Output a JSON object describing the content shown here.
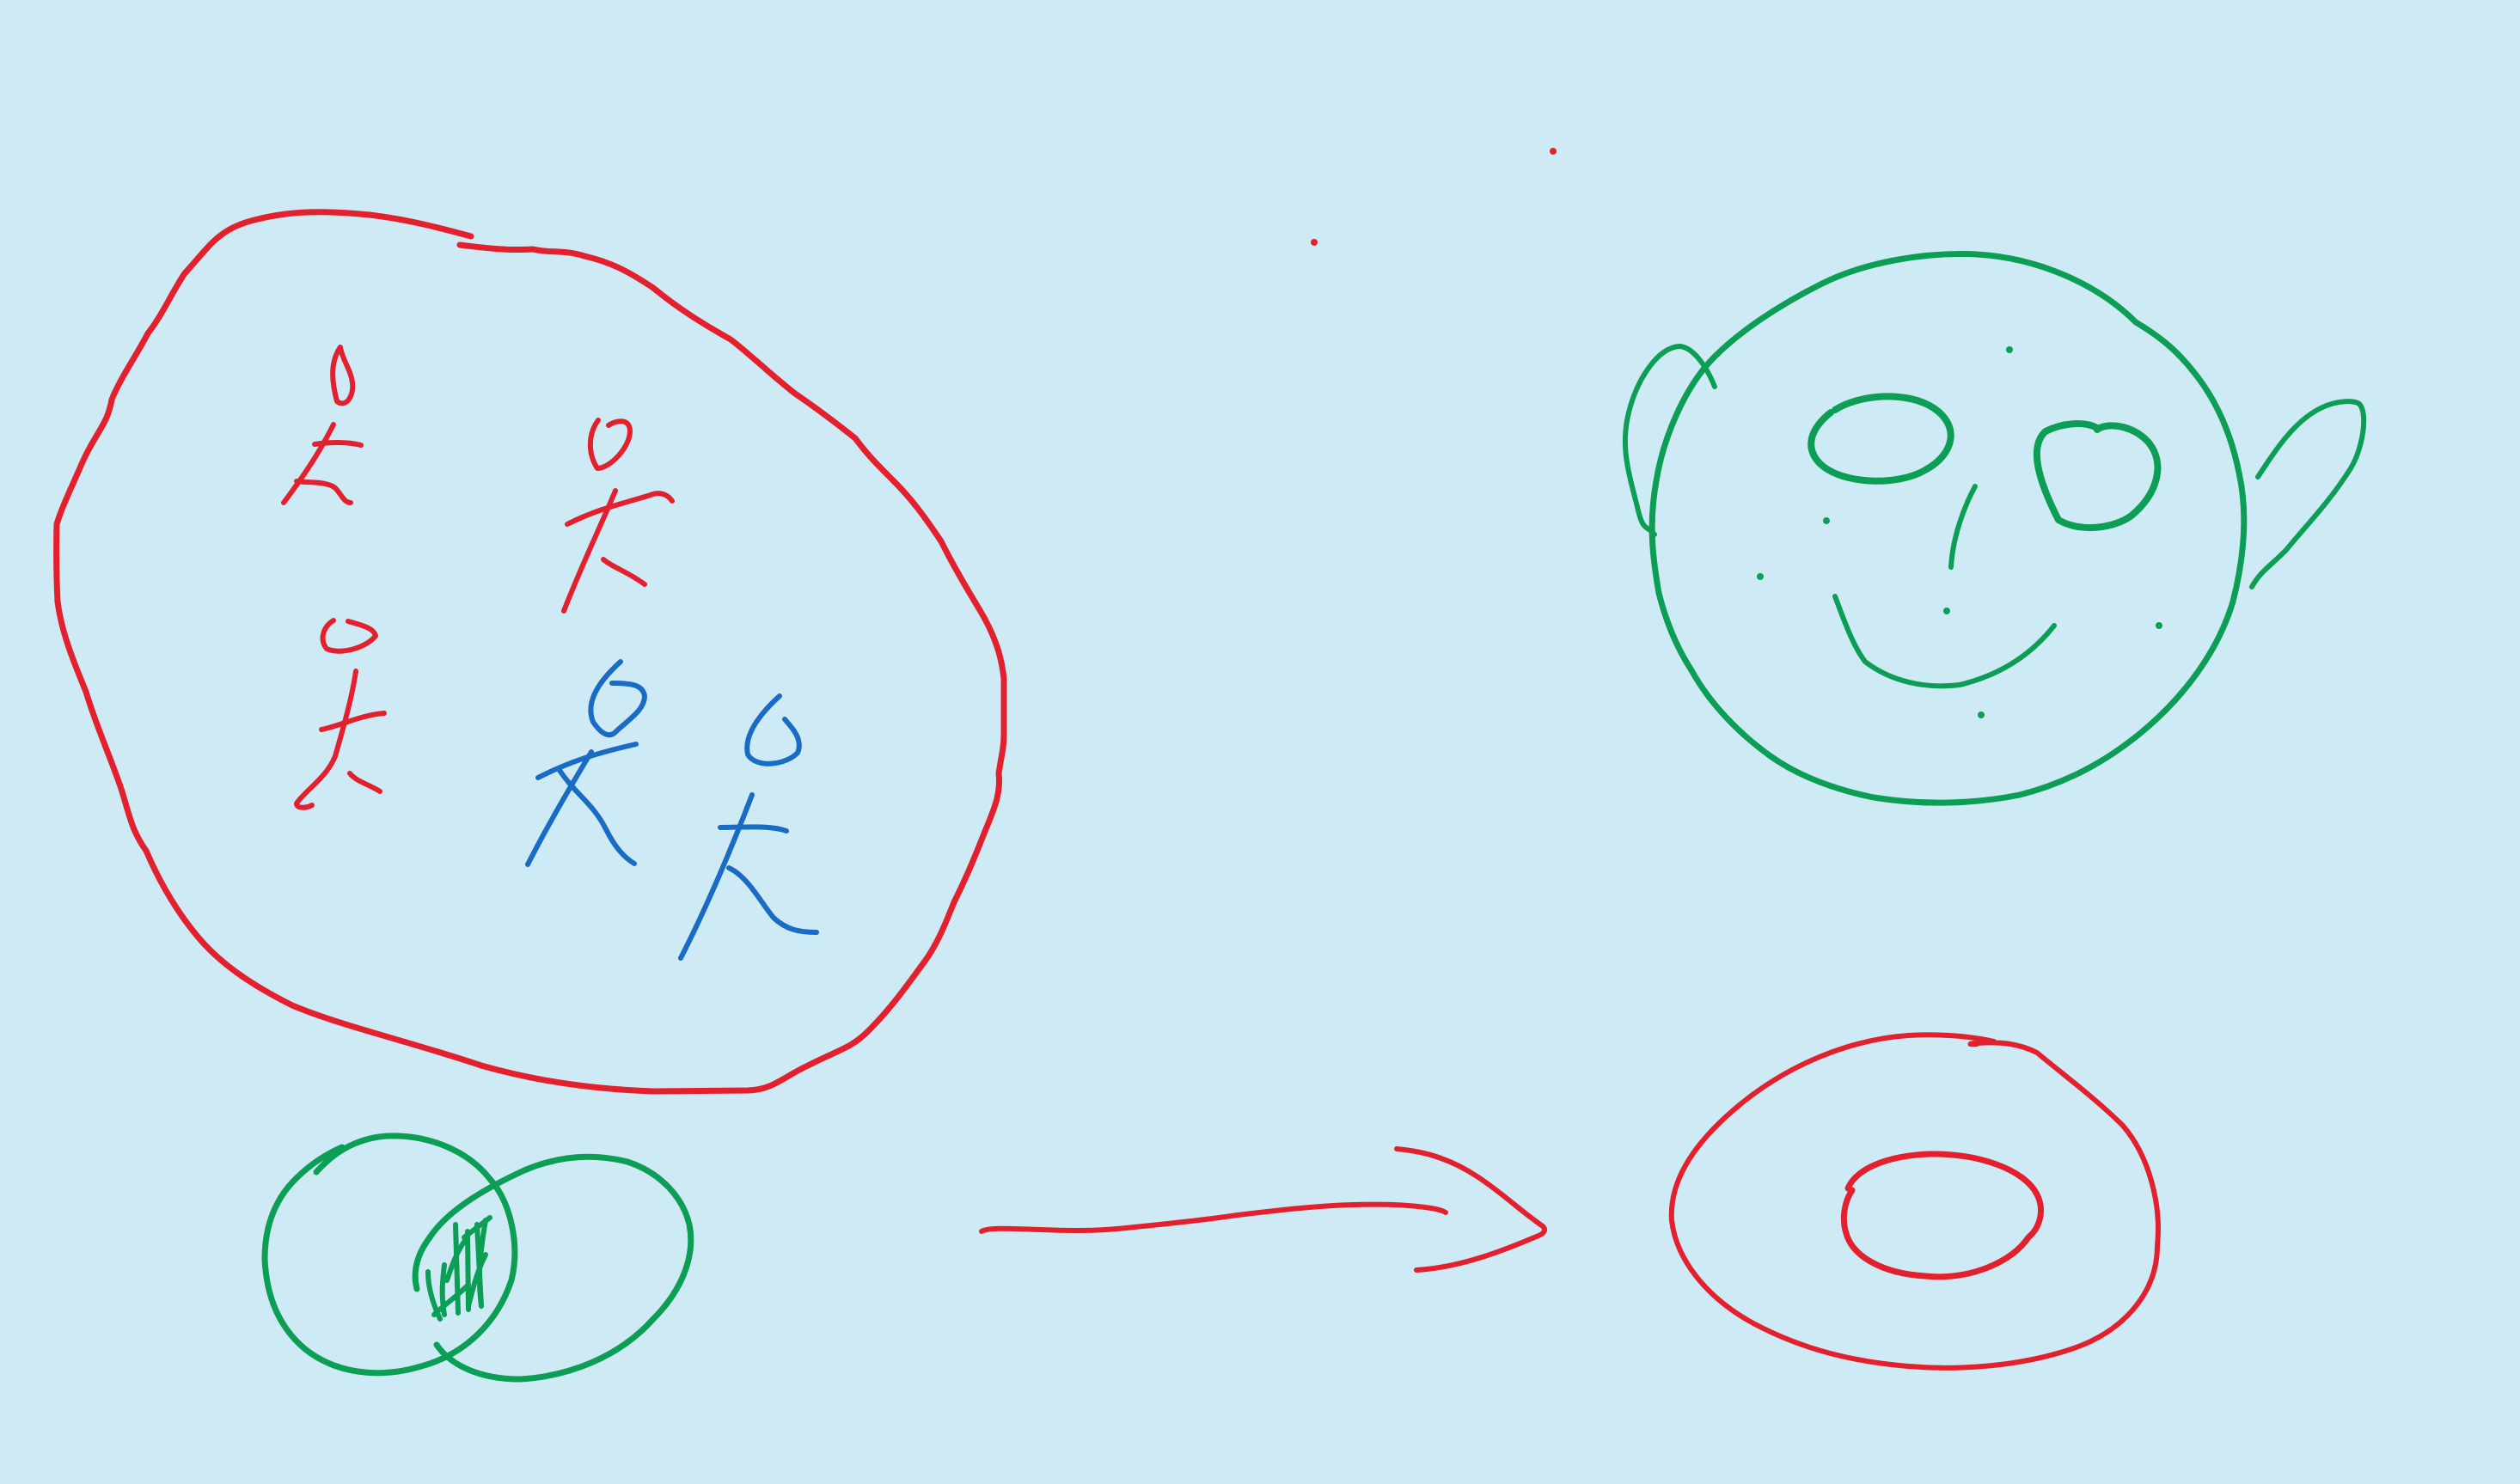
{
  "canvas": {
    "background": "#ceebf5"
  },
  "colors": {
    "red": "#e3202e",
    "green": "#0c9e55",
    "blue": "#1a6bc4"
  },
  "drawing": {
    "tool": "freehand-ink",
    "elements": [
      {
        "name": "set-boundary-blob",
        "color": "red"
      },
      {
        "name": "stick-figures-red",
        "color": "red",
        "count": 3
      },
      {
        "name": "stick-figures-blue",
        "color": "blue",
        "count": 2
      },
      {
        "name": "venn-diagram",
        "color": "green",
        "count": 2
      },
      {
        "name": "arrow",
        "color": "red"
      },
      {
        "name": "ring-donut",
        "color": "red"
      },
      {
        "name": "face",
        "color": "green"
      },
      {
        "name": "stray-dots",
        "color": "red",
        "count": 2
      }
    ]
  }
}
